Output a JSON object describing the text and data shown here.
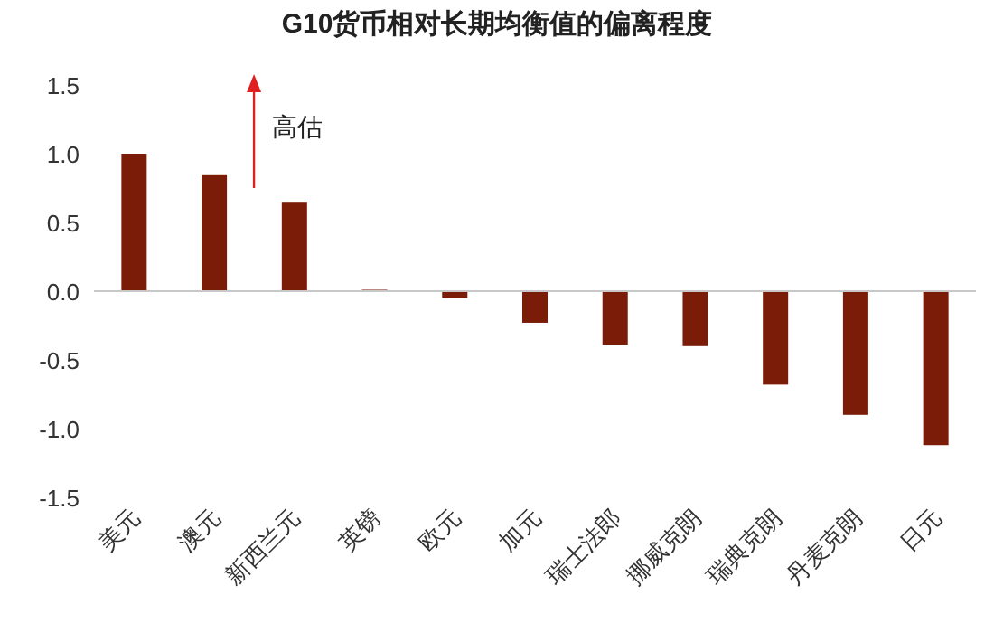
{
  "chart_data": {
    "type": "bar",
    "title": "G10货币相对长期均衡值的偏离程度",
    "categories": [
      "美元",
      "澳元",
      "新西兰元",
      "英镑",
      "欧元",
      "加元",
      "瑞士法郎",
      "挪威克朗",
      "瑞典克朗",
      "丹麦克朗",
      "日元"
    ],
    "values": [
      1.0,
      0.85,
      0.65,
      0.01,
      -0.05,
      -0.23,
      -0.39,
      -0.4,
      -0.68,
      -0.9,
      -1.12
    ],
    "color": "#7b1c08",
    "ylim": [
      -1.5,
      1.5
    ],
    "yticks": [
      {
        "value": 1.5,
        "label": "1.5"
      },
      {
        "value": 1,
        "label": "1.0"
      },
      {
        "value": 0.5,
        "label": "0.5"
      },
      {
        "value": 0,
        "label": "0.0"
      },
      {
        "value": -0.5,
        "label": "-0.5"
      },
      {
        "value": -1,
        "label": "-1.0"
      },
      {
        "value": -1.5,
        "label": "-1.5"
      }
    ],
    "annotations": [
      "高估"
    ]
  }
}
